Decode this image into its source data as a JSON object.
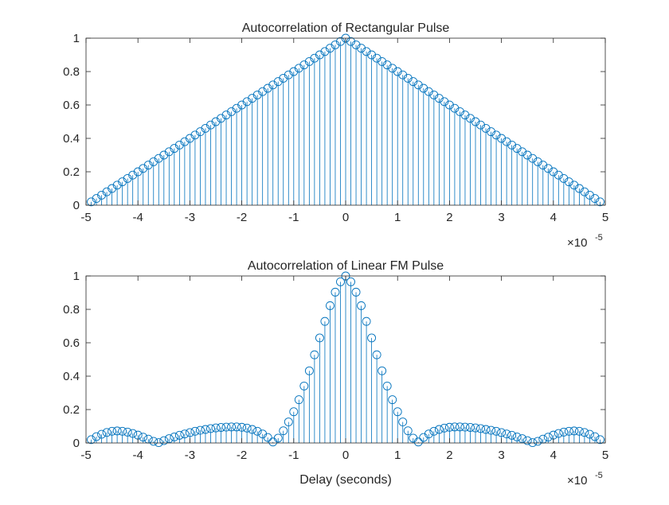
{
  "colors": {
    "stem": "#0072BD",
    "axes": "#262626",
    "background": "#ffffff"
  },
  "chart_data": [
    {
      "type": "stem",
      "title": "Autocorrelation of Rectangular Pulse",
      "xlabel": "",
      "ylabel": "",
      "xlim": [
        -5,
        5
      ],
      "ylim": [
        0,
        1
      ],
      "x_exponent_label": "×10",
      "x_exponent": "-5",
      "xticks": [
        "-5",
        "-4",
        "-3",
        "-2",
        "-1",
        "0",
        "1",
        "2",
        "3",
        "4",
        "5"
      ],
      "yticks": [
        "0",
        "0.2",
        "0.4",
        "0.6",
        "0.8",
        "1"
      ],
      "grid": false,
      "x": [
        -4.9,
        -4.8,
        -4.7,
        -4.6,
        -4.5,
        -4.4,
        -4.3,
        -4.2,
        -4.1,
        -4.0,
        -3.9,
        -3.8,
        -3.7,
        -3.6,
        -3.5,
        -3.4,
        -3.3,
        -3.2,
        -3.1,
        -3.0,
        -2.9,
        -2.8,
        -2.7,
        -2.6,
        -2.5,
        -2.4,
        -2.3,
        -2.2,
        -2.1,
        -2.0,
        -1.9,
        -1.8,
        -1.7,
        -1.6,
        -1.5,
        -1.4,
        -1.3,
        -1.2,
        -1.1,
        -1.0,
        -0.9,
        -0.8,
        -0.7,
        -0.6,
        -0.5,
        -0.4,
        -0.3,
        -0.2,
        -0.1,
        0,
        0.1,
        0.2,
        0.3,
        0.4,
        0.5,
        0.6,
        0.7,
        0.8,
        0.9,
        1.0,
        1.1,
        1.2,
        1.3,
        1.4,
        1.5,
        1.6,
        1.7,
        1.8,
        1.9,
        2.0,
        2.1,
        2.2,
        2.3,
        2.4,
        2.5,
        2.6,
        2.7,
        2.8,
        2.9,
        3.0,
        3.1,
        3.2,
        3.3,
        3.4,
        3.5,
        3.6,
        3.7,
        3.8,
        3.9,
        4.0,
        4.1,
        4.2,
        4.3,
        4.4,
        4.5,
        4.6,
        4.7,
        4.8,
        4.9
      ],
      "values": [
        0.02,
        0.04,
        0.06,
        0.08,
        0.1,
        0.12,
        0.14,
        0.16,
        0.18,
        0.2,
        0.22,
        0.24,
        0.26,
        0.28,
        0.3,
        0.32,
        0.34,
        0.36,
        0.38,
        0.4,
        0.42,
        0.44,
        0.46,
        0.48,
        0.5,
        0.52,
        0.54,
        0.56,
        0.58,
        0.6,
        0.62,
        0.64,
        0.66,
        0.68,
        0.7,
        0.72,
        0.74,
        0.76,
        0.78,
        0.8,
        0.82,
        0.84,
        0.86,
        0.88,
        0.9,
        0.92,
        0.94,
        0.96,
        0.98,
        1.0,
        0.98,
        0.96,
        0.94,
        0.92,
        0.9,
        0.88,
        0.86,
        0.84,
        0.82,
        0.8,
        0.78,
        0.76,
        0.74,
        0.72,
        0.7,
        0.68,
        0.66,
        0.64,
        0.62,
        0.6,
        0.58,
        0.56,
        0.54,
        0.52,
        0.5,
        0.48,
        0.46,
        0.44,
        0.42,
        0.4,
        0.38,
        0.36,
        0.34,
        0.32,
        0.3,
        0.28,
        0.26,
        0.24,
        0.22,
        0.2,
        0.18,
        0.16,
        0.14,
        0.12,
        0.1,
        0.08,
        0.06,
        0.04,
        0.02
      ]
    },
    {
      "type": "stem",
      "title": "Autocorrelation of Linear FM Pulse",
      "xlabel": "Delay (seconds)",
      "ylabel": "",
      "xlim": [
        -5,
        5
      ],
      "ylim": [
        0,
        1
      ],
      "x_exponent_label": "×10",
      "x_exponent": "-5",
      "xticks": [
        "-5",
        "-4",
        "-3",
        "-2",
        "-1",
        "0",
        "1",
        "2",
        "3",
        "4",
        "5"
      ],
      "yticks": [
        "0",
        "0.2",
        "0.4",
        "0.6",
        "0.8",
        "1"
      ],
      "grid": false,
      "x": [
        -4.9,
        -4.8,
        -4.7,
        -4.6,
        -4.5,
        -4.4,
        -4.3,
        -4.2,
        -4.1,
        -4.0,
        -3.9,
        -3.8,
        -3.7,
        -3.6,
        -3.5,
        -3.4,
        -3.3,
        -3.2,
        -3.1,
        -3.0,
        -2.9,
        -2.8,
        -2.7,
        -2.6,
        -2.5,
        -2.4,
        -2.3,
        -2.2,
        -2.1,
        -2.0,
        -1.9,
        -1.8,
        -1.7,
        -1.6,
        -1.5,
        -1.4,
        -1.3,
        -1.2,
        -1.1,
        -1.0,
        -0.9,
        -0.8,
        -0.7,
        -0.6,
        -0.5,
        -0.4,
        -0.3,
        -0.2,
        -0.1,
        0,
        0.1,
        0.2,
        0.3,
        0.4,
        0.5,
        0.6,
        0.7,
        0.8,
        0.9,
        1.0,
        1.1,
        1.2,
        1.3,
        1.4,
        1.5,
        1.6,
        1.7,
        1.8,
        1.9,
        2.0,
        2.1,
        2.2,
        2.3,
        2.4,
        2.5,
        2.6,
        2.7,
        2.8,
        2.9,
        3.0,
        3.1,
        3.2,
        3.3,
        3.4,
        3.5,
        3.6,
        3.7,
        3.8,
        3.9,
        4.0,
        4.1,
        4.2,
        4.3,
        4.4,
        4.5,
        4.6,
        4.7,
        4.8,
        4.9
      ],
      "values": [
        0.02,
        0.038,
        0.052,
        0.063,
        0.07,
        0.072,
        0.07,
        0.065,
        0.057,
        0.047,
        0.035,
        0.023,
        0.01,
        0.002,
        0.014,
        0.026,
        0.036,
        0.046,
        0.054,
        0.062,
        0.07,
        0.076,
        0.081,
        0.086,
        0.09,
        0.093,
        0.095,
        0.096,
        0.096,
        0.094,
        0.089,
        0.081,
        0.07,
        0.054,
        0.033,
        0.006,
        0.029,
        0.073,
        0.126,
        0.187,
        0.259,
        0.341,
        0.432,
        0.528,
        0.629,
        0.728,
        0.822,
        0.903,
        0.965,
        1.0,
        0.965,
        0.903,
        0.822,
        0.728,
        0.629,
        0.528,
        0.432,
        0.341,
        0.259,
        0.187,
        0.126,
        0.073,
        0.029,
        0.006,
        0.033,
        0.054,
        0.07,
        0.081,
        0.089,
        0.094,
        0.096,
        0.096,
        0.095,
        0.093,
        0.09,
        0.086,
        0.081,
        0.076,
        0.07,
        0.062,
        0.054,
        0.046,
        0.036,
        0.026,
        0.014,
        0.002,
        0.01,
        0.023,
        0.035,
        0.047,
        0.057,
        0.065,
        0.07,
        0.072,
        0.07,
        0.063,
        0.052,
        0.038,
        0.02
      ]
    }
  ]
}
